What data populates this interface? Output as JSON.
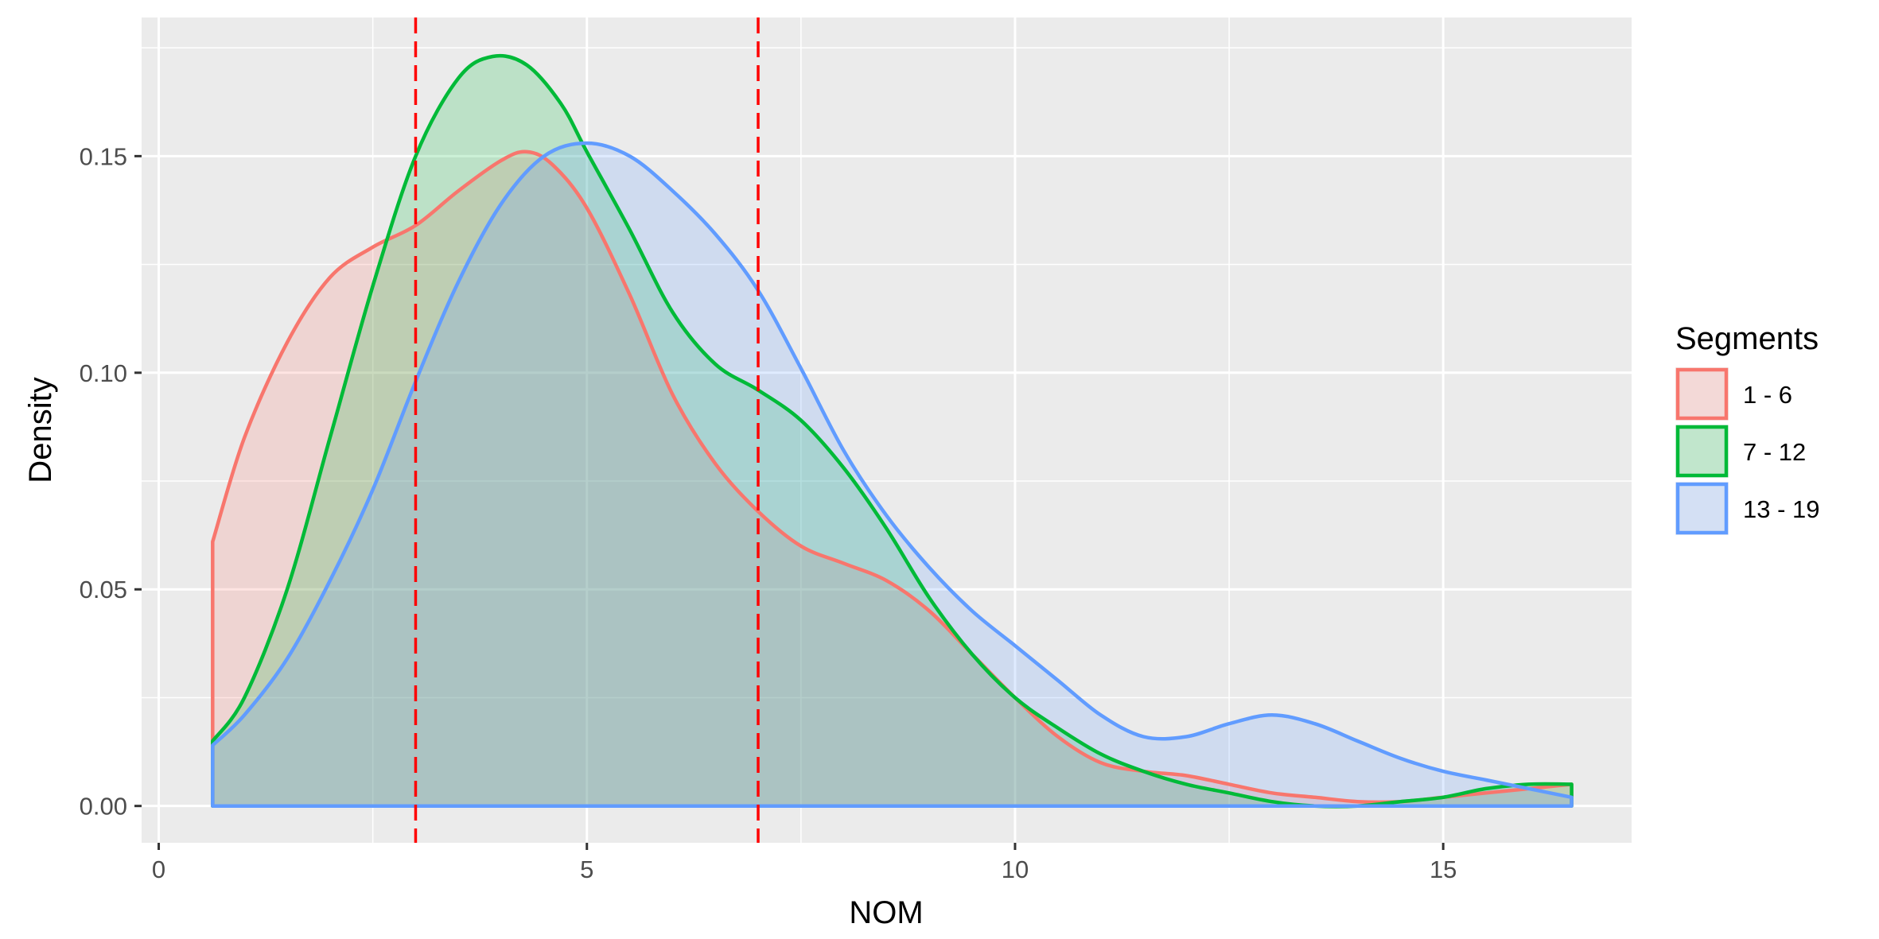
{
  "chart_data": {
    "type": "area",
    "xlabel": "NOM",
    "ylabel": "Density",
    "xlim": [
      -0.2,
      17.2
    ],
    "ylim": [
      -0.0085,
      0.182
    ],
    "x_ticks": [
      0,
      5,
      10,
      15
    ],
    "x_tick_labels": [
      "0",
      "5",
      "10",
      "15"
    ],
    "y_ticks": [
      0.0,
      0.05,
      0.1,
      0.15
    ],
    "y_tick_labels": [
      "0.00",
      "0.05",
      "0.10",
      "0.15"
    ],
    "grid": true,
    "legend": {
      "title": "Segments",
      "position": "right"
    },
    "vlines": [
      3,
      7
    ],
    "vline_color": "#ff0000",
    "series": [
      {
        "name": "1 - 6",
        "color": "#F8766D",
        "x": [
          0.63,
          1,
          1.5,
          2,
          2.5,
          3,
          3.5,
          4,
          4.3,
          4.6,
          5,
          5.5,
          6,
          6.5,
          7,
          7.5,
          8,
          8.5,
          9,
          9.5,
          10,
          10.5,
          11,
          11.5,
          12,
          12.5,
          13,
          13.5,
          14,
          14.5,
          15,
          15.5,
          16,
          16.5
        ],
        "y": [
          0.061,
          0.085,
          0.107,
          0.122,
          0.129,
          0.134,
          0.142,
          0.149,
          0.151,
          0.148,
          0.138,
          0.118,
          0.095,
          0.079,
          0.068,
          0.06,
          0.056,
          0.052,
          0.045,
          0.035,
          0.025,
          0.016,
          0.01,
          0.008,
          0.007,
          0.005,
          0.003,
          0.002,
          0.001,
          0.001,
          0.002,
          0.003,
          0.004,
          0.005
        ]
      },
      {
        "name": "7 - 12",
        "color": "#00BA38",
        "x": [
          0.63,
          1,
          1.5,
          2,
          2.5,
          3,
          3.5,
          3.9,
          4.3,
          4.7,
          5,
          5.5,
          6,
          6.5,
          7,
          7.5,
          8,
          8.5,
          9,
          9.5,
          10,
          10.5,
          11,
          11.5,
          12,
          12.5,
          13,
          13.5,
          14,
          14.5,
          15,
          15.5,
          16,
          16.5
        ],
        "y": [
          0.015,
          0.025,
          0.05,
          0.085,
          0.12,
          0.15,
          0.168,
          0.173,
          0.171,
          0.162,
          0.151,
          0.133,
          0.114,
          0.102,
          0.096,
          0.089,
          0.078,
          0.064,
          0.048,
          0.035,
          0.025,
          0.018,
          0.012,
          0.008,
          0.005,
          0.003,
          0.001,
          0.0,
          0.0,
          0.001,
          0.002,
          0.004,
          0.005,
          0.005
        ]
      },
      {
        "name": "13 - 19",
        "color": "#619CFF",
        "x": [
          0.63,
          1,
          1.5,
          2,
          2.5,
          3,
          3.5,
          4,
          4.5,
          5,
          5.5,
          6,
          6.5,
          7,
          7.5,
          8,
          8.5,
          9,
          9.5,
          10,
          10.5,
          11,
          11.5,
          12,
          12.5,
          13,
          13.5,
          14,
          14.5,
          15,
          15.5,
          16,
          16.5
        ],
        "y": [
          0.014,
          0.021,
          0.034,
          0.052,
          0.073,
          0.098,
          0.121,
          0.139,
          0.15,
          0.153,
          0.15,
          0.142,
          0.132,
          0.119,
          0.101,
          0.082,
          0.067,
          0.055,
          0.045,
          0.037,
          0.029,
          0.021,
          0.016,
          0.016,
          0.019,
          0.021,
          0.019,
          0.015,
          0.011,
          0.008,
          0.006,
          0.004,
          0.002
        ]
      }
    ]
  }
}
